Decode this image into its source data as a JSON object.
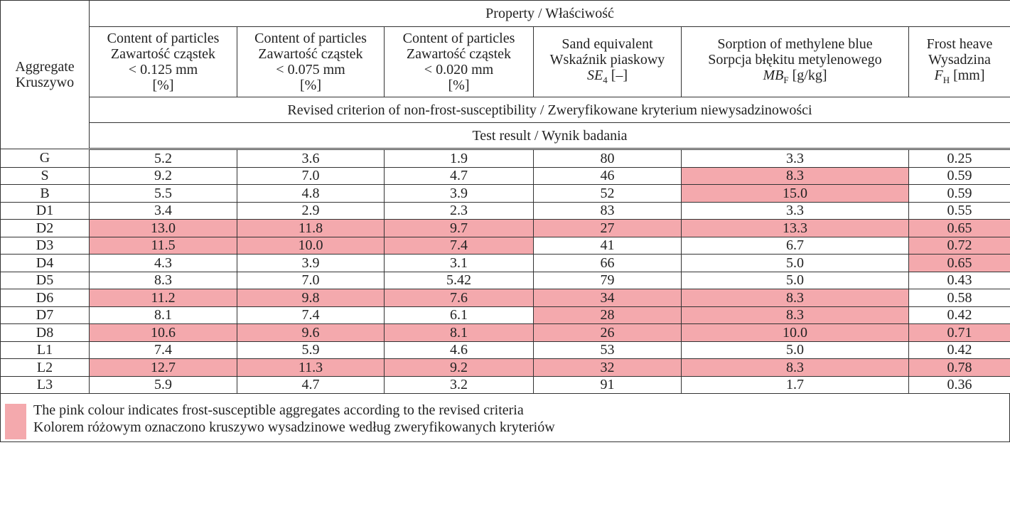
{
  "table": {
    "corner": [
      "Aggregate",
      "Kruszywo"
    ],
    "property": "Property / Właściwość",
    "columns": [
      {
        "lines": [
          "Content of particles",
          "Zawartość cząstek",
          "< 0.125 mm",
          "[%]"
        ]
      },
      {
        "lines": [
          "Content of particles",
          "Zawartość cząstek",
          "< 0.075 mm",
          "[%]"
        ]
      },
      {
        "lines": [
          "Content of particles",
          "Zawartość cząstek",
          "< 0.020 mm",
          "[%]"
        ]
      },
      {
        "lines": [
          "Sand equivalent",
          "Wskaźnik piaskowy"
        ],
        "symbol": "SE",
        "sub": "4",
        "unit": "[–]"
      },
      {
        "lines": [
          "Sorption of methylene blue",
          "Sorpcja błękitu metylenowego"
        ],
        "symbol": "MB",
        "sub": "F",
        "unit": "[g/kg]"
      },
      {
        "lines": [
          "Frost heave",
          "Wysadzina"
        ],
        "symbol": "F",
        "sub": "H",
        "unit": "[mm]"
      }
    ],
    "criterion": "Revised criterion of non-frost-susceptibility / Zweryfikowane kryterium niewysadzinowości",
    "test_result": "Test result / Wynik badania",
    "highlight_color": "#f4a9ad",
    "rows": [
      {
        "aggregate": "G",
        "values": [
          "5.2",
          "3.6",
          "1.9",
          "80",
          "3.3",
          "0.25"
        ],
        "pink": [
          false,
          false,
          false,
          false,
          false,
          false
        ]
      },
      {
        "aggregate": "S",
        "values": [
          "9.2",
          "7.0",
          "4.7",
          "46",
          "8.3",
          "0.59"
        ],
        "pink": [
          false,
          false,
          false,
          false,
          true,
          false
        ]
      },
      {
        "aggregate": "B",
        "values": [
          "5.5",
          "4.8",
          "3.9",
          "52",
          "15.0",
          "0.59"
        ],
        "pink": [
          false,
          false,
          false,
          false,
          true,
          false
        ]
      },
      {
        "aggregate": "D1",
        "values": [
          "3.4",
          "2.9",
          "2.3",
          "83",
          "3.3",
          "0.55"
        ],
        "pink": [
          false,
          false,
          false,
          false,
          false,
          false
        ]
      },
      {
        "aggregate": "D2",
        "values": [
          "13.0",
          "11.8",
          "9.7",
          "27",
          "13.3",
          "0.65"
        ],
        "pink": [
          true,
          true,
          true,
          true,
          true,
          true
        ]
      },
      {
        "aggregate": "D3",
        "values": [
          "11.5",
          "10.0",
          "7.4",
          "41",
          "6.7",
          "0.72"
        ],
        "pink": [
          true,
          true,
          true,
          false,
          false,
          true
        ]
      },
      {
        "aggregate": "D4",
        "values": [
          "4.3",
          "3.9",
          "3.1",
          "66",
          "5.0",
          "0.65"
        ],
        "pink": [
          false,
          false,
          false,
          false,
          false,
          true
        ]
      },
      {
        "aggregate": "D5",
        "values": [
          "8.3",
          "7.0",
          "5.42",
          "79",
          "5.0",
          "0.43"
        ],
        "pink": [
          false,
          false,
          false,
          false,
          false,
          false
        ]
      },
      {
        "aggregate": "D6",
        "values": [
          "11.2",
          "9.8",
          "7.6",
          "34",
          "8.3",
          "0.58"
        ],
        "pink": [
          true,
          true,
          true,
          true,
          true,
          false
        ]
      },
      {
        "aggregate": "D7",
        "values": [
          "8.1",
          "7.4",
          "6.1",
          "28",
          "8.3",
          "0.42"
        ],
        "pink": [
          false,
          false,
          false,
          true,
          true,
          false
        ]
      },
      {
        "aggregate": "D8",
        "values": [
          "10.6",
          "9.6",
          "8.1",
          "26",
          "10.0",
          "0.71"
        ],
        "pink": [
          true,
          true,
          true,
          true,
          true,
          true
        ]
      },
      {
        "aggregate": "L1",
        "values": [
          "7.4",
          "5.9",
          "4.6",
          "53",
          "5.0",
          "0.42"
        ],
        "pink": [
          false,
          false,
          false,
          false,
          false,
          false
        ]
      },
      {
        "aggregate": "L2",
        "values": [
          "12.7",
          "11.3",
          "9.2",
          "32",
          "8.3",
          "0.78"
        ],
        "pink": [
          true,
          true,
          true,
          true,
          true,
          true
        ]
      },
      {
        "aggregate": "L3",
        "values": [
          "5.9",
          "4.7",
          "3.2",
          "91",
          "1.7",
          "0.36"
        ],
        "pink": [
          false,
          false,
          false,
          false,
          false,
          false
        ]
      }
    ],
    "legend": [
      "The pink colour indicates frost-susceptible aggregates according to the revised criteria",
      "Kolorem różowym oznaczono kruszywo wysadzinowe według zweryfikowanych kryteriów"
    ]
  }
}
